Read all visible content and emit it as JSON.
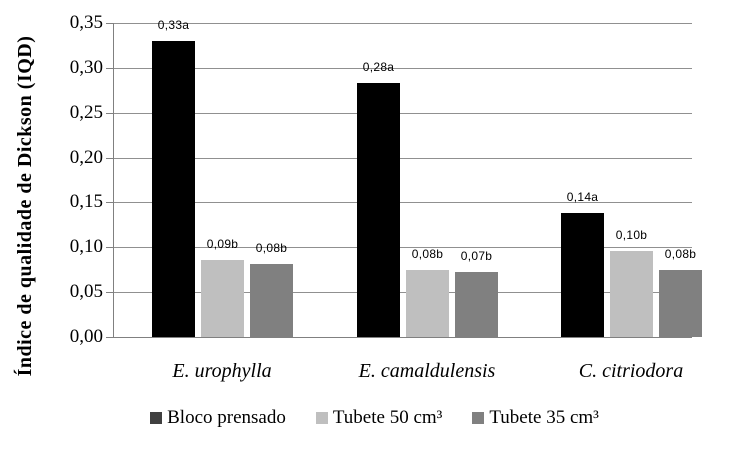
{
  "chart_data": {
    "type": "bar",
    "ylabel": "Índice de qualidade de Dickson (IQD)",
    "categories": [
      "E. urophylla",
      "E. camaldulensis",
      "C. citriodora"
    ],
    "series": [
      {
        "name": "Bloco prensado",
        "color": "#000000",
        "marker_color": "#404040",
        "values": [
          0.33,
          0.283,
          0.138
        ],
        "point_labels": [
          "0,33a",
          "0,28a",
          "0,14a"
        ]
      },
      {
        "name": "Tubete 50 cm³",
        "color": "#bfbfbf",
        "marker_color": "#bfbfbf",
        "values": [
          0.086,
          0.075,
          0.096
        ],
        "point_labels": [
          "0,09b",
          "0,08b",
          "0,10b"
        ]
      },
      {
        "name": "Tubete 35 cm³",
        "color": "#808080",
        "marker_color": "#808080",
        "values": [
          0.081,
          0.073,
          0.075
        ],
        "point_labels": [
          "0,08b",
          "0,07b",
          "0,08b"
        ]
      }
    ],
    "y_axis": {
      "ticks": [
        "0,35",
        "0,30",
        "0,25",
        "0,20",
        "0,15",
        "0,10",
        "0,05",
        "0,00"
      ],
      "min": 0,
      "max": 0.35,
      "decimal_separator": ","
    },
    "grid": true,
    "legend_position": "bottom",
    "gridline_color": "#909090",
    "axis_color": "#808080"
  }
}
